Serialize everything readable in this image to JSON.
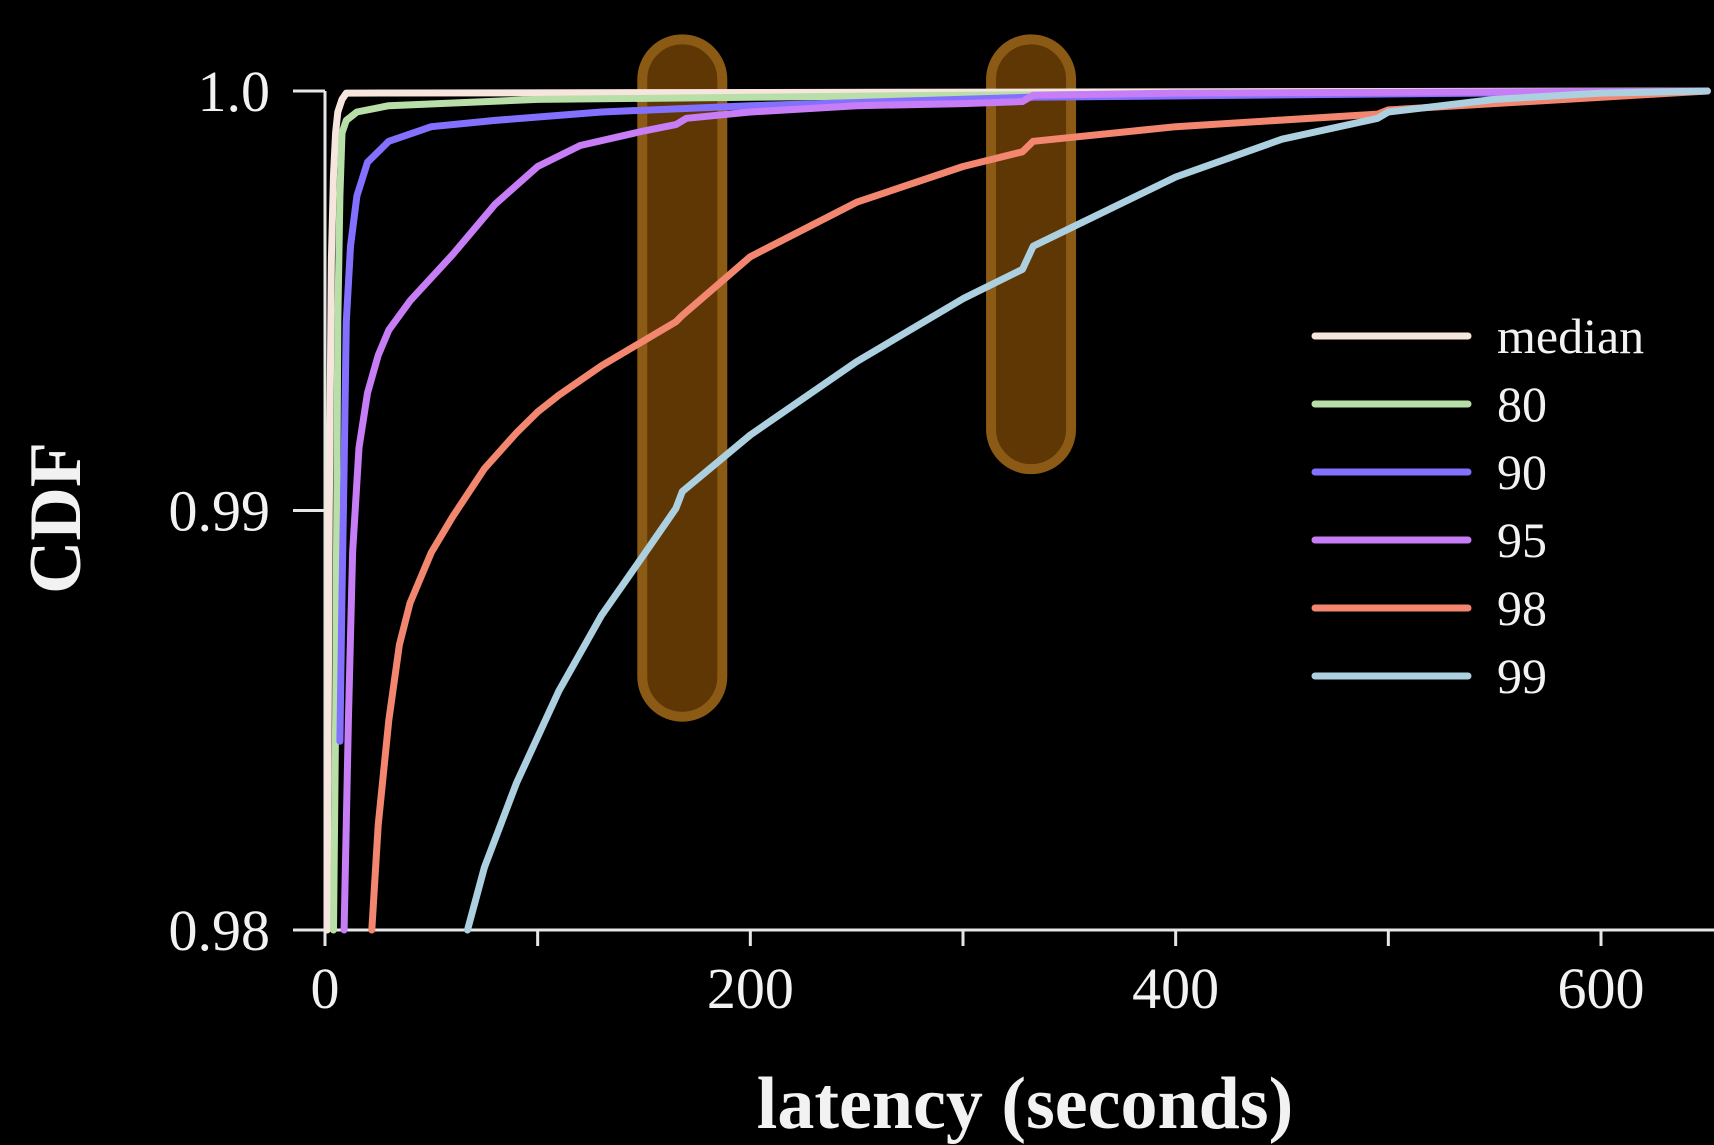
{
  "chart_data": {
    "type": "line",
    "title": "",
    "xlabel": "latency (seconds)",
    "ylabel": "CDF",
    "xlim": [
      0,
      650
    ],
    "ylim": [
      0.98,
      1.0
    ],
    "grid": false,
    "legend_position": "right",
    "x_ticks": [
      {
        "value": 0,
        "label": "0"
      },
      {
        "value": 100,
        "label": ""
      },
      {
        "value": 200,
        "label": "200"
      },
      {
        "value": 300,
        "label": ""
      },
      {
        "value": 400,
        "label": "400"
      },
      {
        "value": 500,
        "label": ""
      },
      {
        "value": 600,
        "label": "600"
      }
    ],
    "y_ticks": [
      {
        "value": 0.98,
        "label": "0.98"
      },
      {
        "value": 0.99,
        "label": "0.99"
      },
      {
        "value": 1.0,
        "label": "1.0"
      }
    ],
    "highlights": [
      {
        "x": 168,
        "y_range": [
          0.9858,
          0.9998
        ],
        "color": "#8b5a14"
      },
      {
        "x": 332,
        "y_range": [
          0.9917,
          0.9998
        ],
        "color": "#8b5a14"
      }
    ],
    "series": [
      {
        "name": "median",
        "color": "#f7e6de",
        "x": [
          1,
          1.5,
          2,
          3,
          4,
          5,
          6,
          8,
          10,
          650
        ],
        "y": [
          0.98,
          0.985,
          0.99,
          0.996,
          0.998,
          0.999,
          0.9995,
          0.9998,
          0.99995,
          1.0
        ]
      },
      {
        "name": "80",
        "color": "#b9dfa8",
        "x": [
          4,
          5,
          6,
          7,
          8,
          10,
          15,
          30,
          100,
          300,
          650
        ],
        "y": [
          0.98,
          0.985,
          0.9945,
          0.9975,
          0.999,
          0.9993,
          0.9995,
          0.99965,
          0.9998,
          0.9999,
          1.0
        ]
      },
      {
        "name": "90",
        "color": "#8370ff",
        "x": [
          7,
          8,
          9,
          10,
          12,
          15,
          20,
          30,
          50,
          80,
          130,
          200,
          330,
          650
        ],
        "y": [
          0.9845,
          0.988,
          0.991,
          0.9945,
          0.9963,
          0.9975,
          0.9983,
          0.9988,
          0.99915,
          0.9993,
          0.9995,
          0.99965,
          0.99985,
          1.0
        ]
      },
      {
        "name": "95",
        "color": "#c77df5",
        "x": [
          9,
          11,
          13,
          16,
          20,
          25,
          30,
          40,
          50,
          60,
          70,
          80,
          100,
          120,
          150,
          165,
          170,
          200,
          250,
          300,
          328,
          333,
          400,
          650
        ],
        "y": [
          0.98,
          0.985,
          0.989,
          0.9915,
          0.9928,
          0.9937,
          0.9943,
          0.995,
          0.99555,
          0.9961,
          0.9967,
          0.9973,
          0.9982,
          0.9987,
          0.99905,
          0.9992,
          0.99935,
          0.9995,
          0.99965,
          0.9997,
          0.99975,
          0.9999,
          0.99995,
          1.0
        ]
      },
      {
        "name": "98",
        "color": "#f2866f",
        "x": [
          22,
          25,
          30,
          35,
          40,
          50,
          60,
          75,
          90,
          100,
          110,
          130,
          150,
          165,
          168,
          200,
          250,
          300,
          328,
          333,
          400,
          495,
          500,
          650
        ],
        "y": [
          0.98,
          0.9825,
          0.985,
          0.9868,
          0.9878,
          0.989,
          0.98985,
          0.991,
          0.99185,
          0.99235,
          0.99275,
          0.99345,
          0.99405,
          0.9945,
          0.99465,
          0.99605,
          0.99735,
          0.9982,
          0.99855,
          0.9988,
          0.99915,
          0.99945,
          0.99955,
          1.0
        ]
      },
      {
        "name": "99",
        "color": "#acd0e0",
        "x": [
          67,
          75,
          90,
          110,
          130,
          150,
          165,
          168,
          200,
          250,
          300,
          328,
          333,
          400,
          450,
          495,
          500,
          550,
          600,
          650
        ],
        "y": [
          0.98,
          0.9815,
          0.9835,
          0.9857,
          0.9875,
          0.98895,
          0.99005,
          0.99045,
          0.9918,
          0.99355,
          0.99505,
          0.99575,
          0.9963,
          0.99795,
          0.99885,
          0.99935,
          0.9995,
          0.9998,
          0.99995,
          1.0
        ]
      }
    ]
  }
}
